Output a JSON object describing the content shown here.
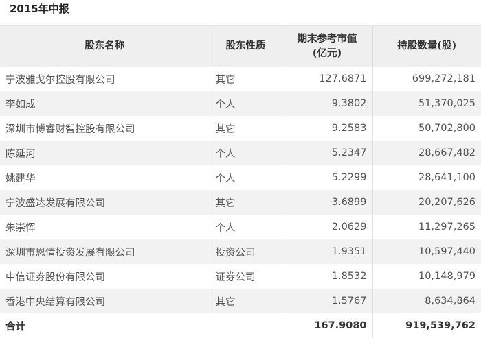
{
  "title": "2015年中报",
  "headers": [
    "股东名称",
    "股东性质",
    "期末参考市值\n(亿元)",
    "持股数量(股)"
  ],
  "header_line1": "期末参考市值",
  "header_line2": "(亿元)",
  "rows": [
    [
      "宁波雅戈尔控股有限公司",
      "其它",
      "127.6871",
      "699,272,181"
    ],
    [
      "李如成",
      "个人",
      "9.3802",
      "51,370,025"
    ],
    [
      "深圳市博睿财智控股有限公司",
      "其它",
      "9.2583",
      "50,702,800"
    ],
    [
      "陈延河",
      "个人",
      "5.2347",
      "28,667,482"
    ],
    [
      "姚建华",
      "个人",
      "5.2299",
      "28,641,100"
    ],
    [
      "宁波盛达发展有限公司",
      "其它",
      "3.6899",
      "20,207,626"
    ],
    [
      "朱崇恽",
      "个人",
      "2.0629",
      "11,297,265"
    ],
    [
      "深圳市恩情投资发展有限公司",
      "投资公司",
      "1.9351",
      "10,597,440"
    ],
    [
      "中信证券股份有限公司",
      "证券公司",
      "1.8532",
      "10,148,979"
    ],
    [
      "香港中央结算有限公司",
      "其它",
      "1.5767",
      "8,634,864"
    ]
  ],
  "total": {
    "label": "合计",
    "type": "",
    "value": "167.9080",
    "shares": "919,539,762"
  }
}
